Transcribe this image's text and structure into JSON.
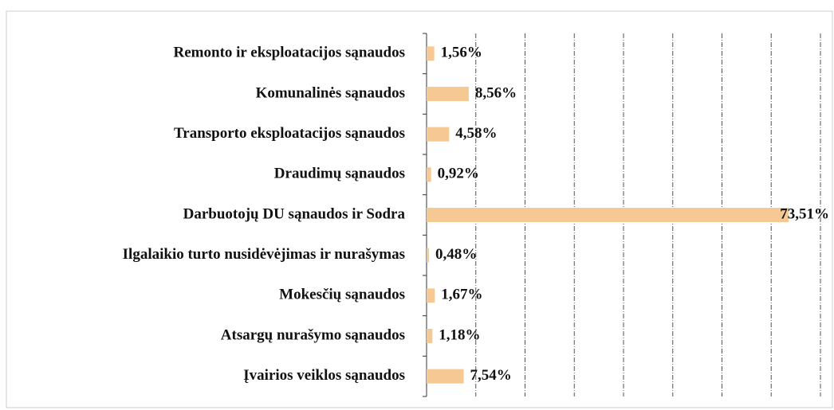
{
  "chart_data": {
    "type": "bar",
    "orientation": "horizontal",
    "categories": [
      "Remonto ir eksploatacijos sąnaudos",
      "Komunalinės sąnaudos",
      "Transporto eksploatacijos sąnaudos",
      "Draudimų sąnaudos",
      "Darbuotojų DU sąnaudos ir Sodra",
      "Ilgalaikio turto nusidėvėjimas ir nurašymas",
      "Mokesčių sąnaudos",
      "Atsargų nurašymo sąnaudos",
      "Įvairios veiklos sąnaudos"
    ],
    "values": [
      1.56,
      8.56,
      4.58,
      0.92,
      73.51,
      0.48,
      1.67,
      1.18,
      7.54
    ],
    "value_labels": [
      "1,56%",
      "8,56%",
      "4,58%",
      "0,92%",
      "73,51%",
      "0,48%",
      "1,67%",
      "1,18%",
      "7,54%"
    ],
    "color": "#f6c893",
    "xlim": [
      0,
      80
    ],
    "xticks": [
      0,
      10,
      20,
      30,
      40,
      50,
      60,
      70,
      80
    ],
    "grid": true
  }
}
